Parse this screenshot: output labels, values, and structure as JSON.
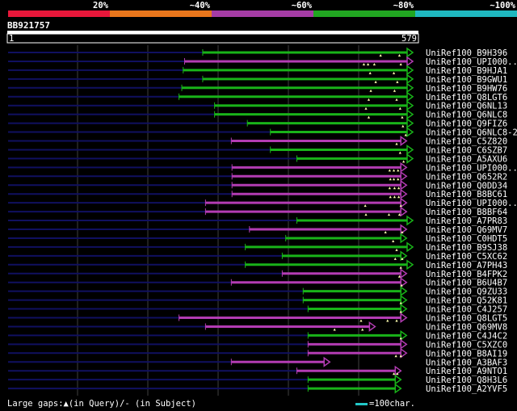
{
  "colors": {
    "green": "#19b319",
    "magenta": "#b33cb3",
    "navy": "#101060",
    "grid": "#404040",
    "scale": [
      "#e8173a",
      "#e9761c",
      "#a53ca5",
      "#21a621",
      "#1fb8c0"
    ]
  },
  "identity_scale": {
    "labels": [
      "20%",
      "~40%",
      "~60%",
      "~80%",
      "~100%"
    ]
  },
  "query": {
    "name": "BB921757",
    "start_label": "1",
    "end_label": "579"
  },
  "chart_data": {
    "type": "alignment",
    "query_length": 579,
    "hits": [
      {
        "label": "UniRef100_B9H396",
        "start": 279,
        "end": 579,
        "color": "green",
        "marks": [
          534,
          561
        ]
      },
      {
        "label": "UniRef100_UPI000..",
        "start": 253,
        "end": 579,
        "color": "magenta",
        "marks": [
          510,
          516,
          525,
          563
        ]
      },
      {
        "label": "UniRef100_B9HJA1",
        "start": 251,
        "end": 579,
        "color": "green",
        "marks": [
          519,
          553
        ]
      },
      {
        "label": "UniRef100_B9GWU1",
        "start": 279,
        "end": 579,
        "color": "green",
        "marks": [
          527,
          558
        ]
      },
      {
        "label": "UniRef100_B9HW76",
        "start": 249,
        "end": 579,
        "color": "green",
        "marks": [
          520,
          554
        ]
      },
      {
        "label": "UniRef100_Q8LGT6",
        "start": 245,
        "end": 579,
        "color": "green",
        "marks": [
          517,
          557
        ]
      },
      {
        "label": "UniRef100_Q6NL13",
        "start": 296,
        "end": 579,
        "color": "green",
        "marks": [
          513,
          562
        ]
      },
      {
        "label": "UniRef100_Q6NLC8",
        "start": 296,
        "end": 579,
        "color": "green",
        "marks": [
          517,
          565
        ]
      },
      {
        "label": "UniRef100_Q9FIZ6",
        "start": 343,
        "end": 579,
        "color": "green",
        "marks": [
          566
        ]
      },
      {
        "label": "UniRef100_Q6NLC8-2",
        "start": 376,
        "end": 579,
        "color": "green",
        "marks": [
          570
        ]
      },
      {
        "label": "UniRef100_C5Z820",
        "start": 320,
        "end": 570,
        "color": "magenta",
        "marks": [
          557
        ]
      },
      {
        "label": "UniRef100_C6SZB7",
        "start": 376,
        "end": 579,
        "color": "green",
        "marks": [
          562
        ]
      },
      {
        "label": "UniRef100_A5AXU6",
        "start": 414,
        "end": 579,
        "color": "green",
        "marks": [
          567
        ]
      },
      {
        "label": "UniRef100_UPI000..",
        "start": 321,
        "end": 570,
        "color": "magenta",
        "marks": [
          547,
          553,
          559
        ]
      },
      {
        "label": "UniRef100_Q652R2",
        "start": 321,
        "end": 570,
        "color": "magenta",
        "marks": [
          548,
          553,
          559
        ]
      },
      {
        "label": "UniRef100_Q0DD34",
        "start": 321,
        "end": 570,
        "color": "magenta",
        "marks": [
          547,
          554,
          560
        ]
      },
      {
        "label": "UniRef100_B8BC61",
        "start": 321,
        "end": 570,
        "color": "magenta",
        "marks": [
          548,
          554,
          560
        ]
      },
      {
        "label": "UniRef100_UPI000..",
        "start": 283,
        "end": 570,
        "color": "magenta",
        "marks": [
          512,
          563
        ]
      },
      {
        "label": "UniRef100_B8BF64",
        "start": 283,
        "end": 570,
        "color": "magenta",
        "marks": [
          513,
          546,
          561
        ]
      },
      {
        "label": "UniRef100_A7PR83",
        "start": 414,
        "end": 579,
        "color": "green",
        "marks": []
      },
      {
        "label": "UniRef100_Q69MV7",
        "start": 346,
        "end": 570,
        "color": "magenta",
        "marks": [
          541,
          565
        ]
      },
      {
        "label": "UniRef100_C0HDT5",
        "start": 398,
        "end": 570,
        "color": "green",
        "marks": [
          552
        ]
      },
      {
        "label": "UniRef100_B9SJ38",
        "start": 340,
        "end": 579,
        "color": "green",
        "marks": [
          557
        ]
      },
      {
        "label": "UniRef100_C5XC62",
        "start": 393,
        "end": 570,
        "color": "green",
        "marks": [
          555,
          565
        ]
      },
      {
        "label": "UniRef100_A7PH43",
        "start": 340,
        "end": 579,
        "color": "green",
        "marks": [
          563
        ]
      },
      {
        "label": "UniRef100_B4FPK2",
        "start": 393,
        "end": 570,
        "color": "magenta",
        "marks": [
          561
        ]
      },
      {
        "label": "UniRef100_B6U4B7",
        "start": 320,
        "end": 570,
        "color": "magenta",
        "marks": [
          564
        ]
      },
      {
        "label": "UniRef100_Q9ZU33",
        "start": 423,
        "end": 570,
        "color": "green",
        "marks": []
      },
      {
        "label": "UniRef100_Q52K81",
        "start": 423,
        "end": 570,
        "color": "green",
        "marks": [
          563
        ]
      },
      {
        "label": "UniRef100_C4J257",
        "start": 430,
        "end": 570,
        "color": "green",
        "marks": [
          563
        ]
      },
      {
        "label": "UniRef100_Q8LGT5",
        "start": 245,
        "end": 570,
        "color": "magenta",
        "marks": [
          506,
          544,
          557
        ]
      },
      {
        "label": "UniRef100_Q69MV8",
        "start": 283,
        "end": 525,
        "color": "magenta",
        "marks": [
          468,
          508
        ]
      },
      {
        "label": "UniRef100_C4J4C2",
        "start": 430,
        "end": 570,
        "color": "green",
        "marks": [
          563
        ]
      },
      {
        "label": "UniRef100_C5XZC0",
        "start": 430,
        "end": 570,
        "color": "magenta",
        "marks": []
      },
      {
        "label": "UniRef100_B8AI19",
        "start": 430,
        "end": 570,
        "color": "magenta",
        "marks": [
          556,
          563
        ]
      },
      {
        "label": "UniRef100_A3BAF3",
        "start": 320,
        "end": 460,
        "color": "magenta",
        "marks": []
      },
      {
        "label": "UniRef100_A9NTO1",
        "start": 414,
        "end": 562,
        "color": "magenta",
        "marks": [
          553,
          558
        ]
      },
      {
        "label": "UniRef100_Q8H3L6",
        "start": 430,
        "end": 562,
        "color": "green",
        "marks": []
      },
      {
        "label": "UniRef100_A2YVF5",
        "start": 430,
        "end": 562,
        "color": "green",
        "marks": []
      }
    ]
  },
  "footer": {
    "large_gaps_label": "Large gaps:▲(in Query)/- (in Subject)",
    "legend_label": "=100char."
  }
}
